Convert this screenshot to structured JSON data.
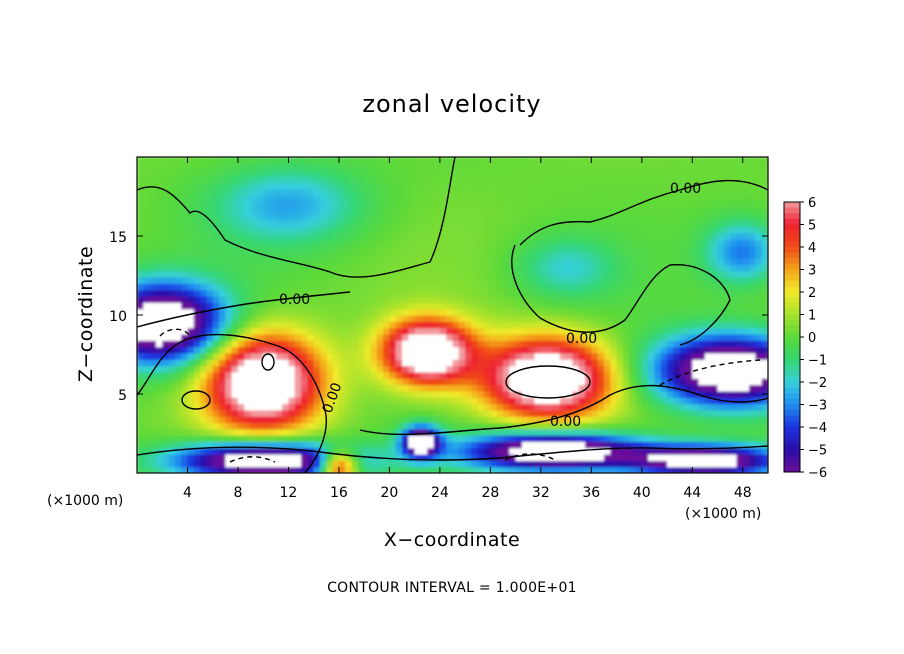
{
  "chart_data": {
    "type": "heatmap",
    "title": "zonal velocity",
    "xlabel": "X−coordinate",
    "ylabel": "Z−coordinate",
    "x_unit_left": "(×1000 m)",
    "x_unit_right": "(×1000 m)",
    "footnote": "CONTOUR INTERVAL = 1.000E+01",
    "x_ticks": [
      "4",
      "8",
      "12",
      "16",
      "20",
      "24",
      "28",
      "32",
      "36",
      "40",
      "44",
      "48"
    ],
    "y_ticks": [
      "5",
      "10",
      "15"
    ],
    "xlim": [
      0,
      50
    ],
    "ylim": [
      0,
      20
    ],
    "colorbar": {
      "min": -6,
      "max": 6,
      "ticks": [
        "6",
        "5",
        "4",
        "3",
        "2",
        "1",
        "0",
        "−1",
        "−2",
        "−3",
        "−4",
        "−5",
        "−6"
      ],
      "saturated_regions": "white"
    },
    "contour_labels": [
      "0.00",
      "0.00",
      "0.00",
      "0.00",
      "0.00"
    ],
    "field_regions": [
      {
        "desc": "background",
        "value": 0.2
      },
      {
        "desc": "upper-left blue patch",
        "x": 12,
        "z": 17,
        "rx": 6,
        "rz": 2.5,
        "value": -2.8
      },
      {
        "desc": "upper-right cyan patch",
        "x": 34,
        "z": 13,
        "rx": 4,
        "rz": 2,
        "value": -2.0
      },
      {
        "desc": "right edge blue",
        "x": 48,
        "z": 14,
        "rx": 3,
        "rz": 2,
        "value": -3.5
      },
      {
        "desc": "left jet strong negative",
        "x": 2,
        "z": 9.5,
        "rx": 5,
        "rz": 2.5,
        "value": -9
      },
      {
        "desc": "right jet strong negative",
        "x": 47,
        "z": 6.5,
        "rx": 6,
        "rz": 2.2,
        "value": -9
      },
      {
        "desc": "bottom left negative",
        "x": 10,
        "z": 0.8,
        "rx": 7,
        "rz": 1.2,
        "value": -9
      },
      {
        "desc": "bottom center negative",
        "x": 33,
        "z": 1.4,
        "rx": 7,
        "rz": 1.2,
        "value": -9
      },
      {
        "desc": "bottom right negative",
        "x": 45,
        "z": 0.8,
        "rx": 6,
        "rz": 1,
        "value": -8
      },
      {
        "desc": "small negative bump",
        "x": 22.5,
        "z": 2.0,
        "rx": 1.5,
        "rz": 1,
        "value": -8
      },
      {
        "desc": "left positive core",
        "x": 10,
        "z": 5.8,
        "rx": 4.5,
        "rz": 3,
        "value": 9
      },
      {
        "desc": "middle positive core",
        "x": 23,
        "z": 7.7,
        "rx": 3.5,
        "rz": 2,
        "value": 9
      },
      {
        "desc": "right positive core",
        "x": 32.5,
        "z": 6.0,
        "rx": 5,
        "rz": 2.5,
        "value": 9
      },
      {
        "desc": "bottom positive bump",
        "x": 16,
        "z": 0.5,
        "rx": 1.5,
        "rz": 1,
        "value": 7
      }
    ]
  }
}
